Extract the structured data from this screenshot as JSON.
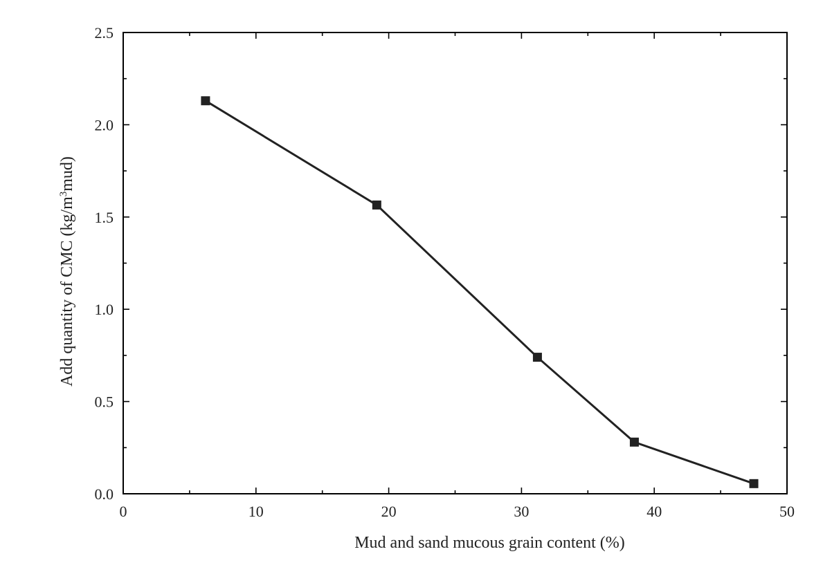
{
  "chart_data": {
    "type": "line",
    "title": "",
    "xlabel": "Mud and sand mucous grain content (%)",
    "ylabel_parts": [
      "Add quantity of CMC (kg/m",
      "3",
      "mud)"
    ],
    "xlim": [
      0,
      50
    ],
    "ylim": [
      0,
      2.5
    ],
    "x_ticks": [
      0,
      10,
      20,
      30,
      40,
      50
    ],
    "x_tick_labels": [
      "0",
      "10",
      "20",
      "30",
      "40",
      "50"
    ],
    "y_ticks": [
      0,
      0.5,
      1.0,
      1.5,
      2.0,
      2.5
    ],
    "y_tick_labels": [
      "0.0",
      "0.5",
      "1.0",
      "1.5",
      "2.0",
      "2.5"
    ],
    "grid": false,
    "marker": "square",
    "series": [
      {
        "x": [
          6.2,
          19.1,
          31.2,
          38.5,
          47.5
        ],
        "y": [
          2.13,
          1.565,
          0.74,
          0.28,
          0.055
        ]
      }
    ]
  }
}
